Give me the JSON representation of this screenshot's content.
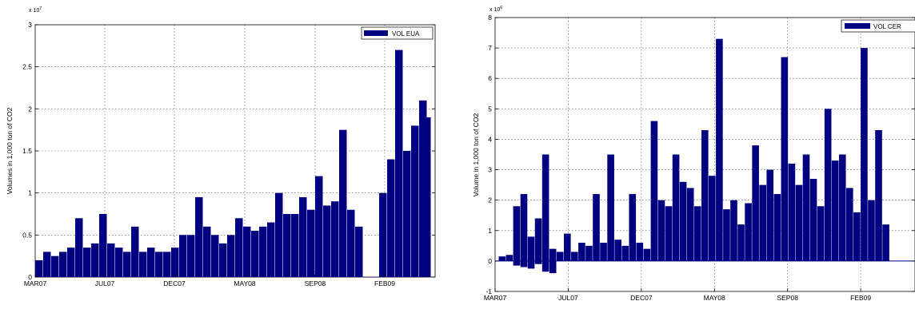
{
  "chart_data": [
    {
      "type": "bar",
      "legend": {
        "label": "VOL EUA",
        "location": "top-right"
      },
      "ylabel": "Volumes in 1,000 ton of CO2",
      "xlabel": "",
      "y_exponent": "x 10",
      "y_exponent_power": "7",
      "xlim": [
        0,
        500
      ],
      "ylim": [
        0,
        3
      ],
      "x_ticks": [
        {
          "x": 0,
          "label": "MAR07"
        },
        {
          "x": 87,
          "label": "JUL07"
        },
        {
          "x": 174,
          "label": "DEC07"
        },
        {
          "x": 262,
          "label": "MAY08"
        },
        {
          "x": 350,
          "label": "SEP08"
        },
        {
          "x": 437,
          "label": "FEB09"
        }
      ],
      "y_ticks": [
        {
          "y": 0,
          "label": "0"
        },
        {
          "y": 0.5,
          "label": "0.5"
        },
        {
          "y": 1,
          "label": "1"
        },
        {
          "y": 1.5,
          "label": "1.5"
        },
        {
          "y": 2,
          "label": "2"
        },
        {
          "y": 2.5,
          "label": "2.5"
        },
        {
          "y": 3,
          "label": "3"
        }
      ],
      "grid": true,
      "series": [
        {
          "name": "VOL EUA",
          "x": [
            0,
            10,
            20,
            30,
            40,
            50,
            60,
            70,
            80,
            90,
            100,
            110,
            120,
            130,
            140,
            150,
            160,
            170,
            180,
            190,
            200,
            210,
            220,
            230,
            240,
            250,
            260,
            270,
            280,
            290,
            300,
            310,
            320,
            330,
            340,
            350,
            360,
            370,
            380,
            390,
            400,
            410,
            420,
            430,
            440,
            450,
            460,
            470,
            480,
            485
          ],
          "values": [
            0.2,
            0.3,
            0.25,
            0.3,
            0.35,
            0.7,
            0.35,
            0.4,
            0.75,
            0.4,
            0.35,
            0.3,
            0.6,
            0.3,
            0.35,
            0.3,
            0.3,
            0.35,
            0.5,
            0.5,
            0.95,
            0.6,
            0.5,
            0.4,
            0.5,
            0.7,
            0.6,
            0.55,
            0.6,
            0.65,
            1.0,
            0.75,
            0.75,
            0.95,
            0.8,
            1.2,
            0.85,
            0.9,
            1.75,
            0.8,
            0.6,
            0.0,
            0.0,
            1.0,
            1.4,
            2.7,
            1.5,
            1.8,
            2.1,
            1.9
          ]
        }
      ]
    },
    {
      "type": "bar",
      "legend": {
        "label": "VOL CER",
        "location": "top-right"
      },
      "ylabel": "Volume in 1,000 ton of CO2",
      "xlabel": "",
      "y_exponent": "x 10",
      "y_exponent_power": "6",
      "xlim": [
        0,
        580
      ],
      "ylim": [
        -1,
        8
      ],
      "x_ticks": [
        {
          "x": 0,
          "label": "MAR07"
        },
        {
          "x": 101,
          "label": "JUL07"
        },
        {
          "x": 202,
          "label": "DEC07"
        },
        {
          "x": 303,
          "label": "MAY08"
        },
        {
          "x": 404,
          "label": "SEP08"
        },
        {
          "x": 505,
          "label": "FEB09"
        }
      ],
      "y_ticks": [
        {
          "y": -1,
          "label": "-1"
        },
        {
          "y": 0,
          "label": "0"
        },
        {
          "y": 1,
          "label": "1"
        },
        {
          "y": 2,
          "label": "2"
        },
        {
          "y": 3,
          "label": "3"
        },
        {
          "y": 4,
          "label": "4"
        },
        {
          "y": 5,
          "label": "5"
        },
        {
          "y": 6,
          "label": "6"
        },
        {
          "y": 7,
          "label": "7"
        },
        {
          "y": 8,
          "label": "8"
        }
      ],
      "grid": true,
      "series": [
        {
          "name": "VOL CER",
          "x": [
            5,
            15,
            25,
            35,
            45,
            55,
            65,
            75,
            85,
            95,
            105,
            115,
            125,
            135,
            145,
            155,
            165,
            175,
            185,
            195,
            205,
            215,
            225,
            235,
            245,
            255,
            265,
            275,
            285,
            295,
            305,
            315,
            325,
            335,
            345,
            355,
            365,
            375,
            385,
            395,
            405,
            415,
            425,
            435,
            445,
            455,
            465,
            475,
            485,
            495,
            505,
            515,
            525,
            535
          ],
          "values": [
            0.15,
            0.2,
            1.8,
            2.2,
            0.8,
            1.4,
            3.5,
            0.4,
            0.3,
            0.9,
            0.3,
            0.6,
            0.5,
            2.2,
            0.6,
            3.5,
            0.7,
            0.5,
            2.2,
            0.6,
            0.4,
            4.6,
            2.0,
            1.8,
            3.5,
            2.6,
            2.4,
            1.8,
            4.3,
            2.8,
            7.3,
            1.7,
            2.0,
            1.2,
            1.9,
            3.8,
            2.5,
            3.0,
            2.2,
            6.7,
            3.2,
            2.5,
            3.5,
            2.7,
            1.8,
            5.0,
            3.3,
            3.5,
            2.4,
            1.6,
            7.0,
            2.0,
            4.3,
            1.2
          ]
        },
        {
          "name": "",
          "x": [
            25,
            35,
            45,
            55,
            65,
            75
          ],
          "values": [
            -0.15,
            -0.2,
            -0.25,
            -0.1,
            -0.35,
            -0.4
          ]
        }
      ]
    }
  ]
}
